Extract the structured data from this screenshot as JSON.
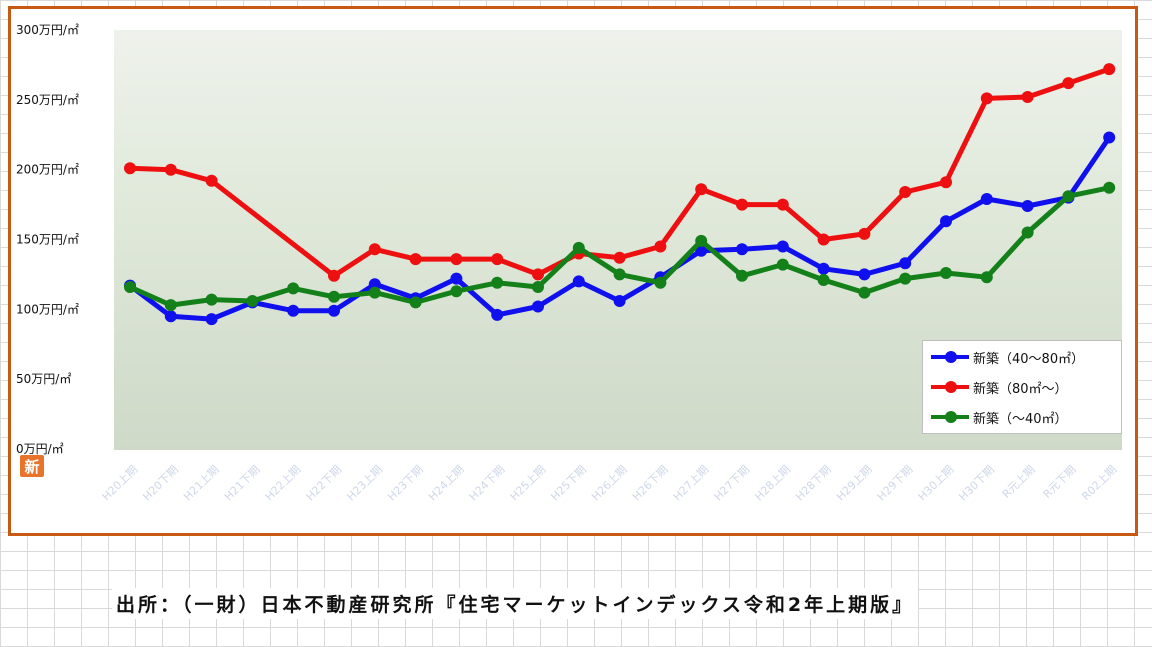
{
  "chart_data": {
    "type": "line",
    "categories": [
      "H20上期",
      "H20下期",
      "H21上期",
      "H21下期",
      "H22上期",
      "H22下期",
      "H23上期",
      "H23下期",
      "H24上期",
      "H24下期",
      "H25上期",
      "H25下期",
      "H26上期",
      "H26下期",
      "H27上期",
      "H27下期",
      "H28上期",
      "H28下期",
      "H29上期",
      "H29下期",
      "H30上期",
      "H30下期",
      "R元上期",
      "R元下期",
      "R02上期"
    ],
    "series": [
      {
        "name": "新築（40～80㎡）",
        "color": "#1010ee",
        "values": [
          117,
          95,
          93,
          105,
          99,
          99,
          118,
          108,
          122,
          96,
          102,
          120,
          106,
          123,
          142,
          143,
          145,
          129,
          125,
          133,
          163,
          179,
          174,
          180,
          223
        ]
      },
      {
        "name": "新築（80㎡～）",
        "color": "#ee1010",
        "values": [
          201,
          200,
          192,
          null,
          null,
          124,
          143,
          136,
          136,
          136,
          125,
          140,
          137,
          145,
          186,
          175,
          175,
          150,
          154,
          184,
          191,
          251,
          252,
          262,
          272
        ]
      },
      {
        "name": "新築（～40㎡）",
        "color": "#14801a",
        "values": [
          116,
          103,
          107,
          106,
          115,
          109,
          112,
          105,
          113,
          119,
          116,
          144,
          125,
          119,
          149,
          124,
          132,
          121,
          112,
          122,
          126,
          123,
          155,
          181,
          187
        ]
      }
    ],
    "ylim": [
      0,
      300
    ],
    "yticks": [
      0,
      50,
      100,
      150,
      200,
      250,
      300
    ],
    "ytick_labels": [
      "0万円/㎡",
      "50万円/㎡",
      "100万円/㎡",
      "150万円/㎡",
      "200万円/㎡",
      "250万円/㎡",
      "300万円/㎡"
    ],
    "grid": false,
    "legend_position": "bottom-right"
  },
  "logo_text": "新",
  "source_note": "出所：（一財）日本不動産研究所『住宅マーケットインデックス令和2年上期版』"
}
